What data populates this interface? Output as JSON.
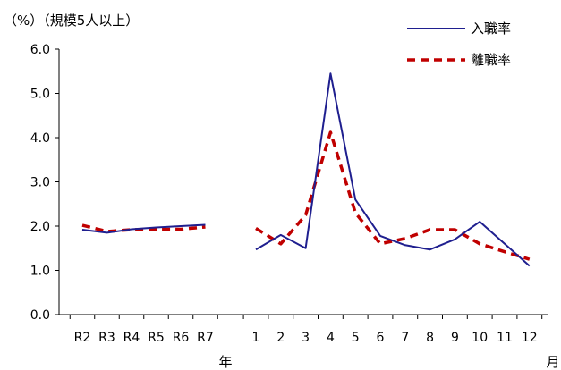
{
  "chart_data": {
    "type": "line",
    "title": "",
    "ylabel": "（%）（規模5人以上）",
    "xlabel_years": "年",
    "xlabel_months": "月",
    "ylim": [
      0,
      6
    ],
    "yticks": [
      "0.0",
      "1.0",
      "2.0",
      "3.0",
      "4.0",
      "5.0",
      "6.0"
    ],
    "year_categories": [
      "R2",
      "R3",
      "R4",
      "R5",
      "R6",
      "R7"
    ],
    "month_categories": [
      "1",
      "2",
      "3",
      "4",
      "5",
      "6",
      "7",
      "8",
      "9",
      "10",
      "11",
      "12"
    ],
    "legend_position": "top-right",
    "series": [
      {
        "name": "入職率",
        "color": "#1f1f8f",
        "style": "solid",
        "year_values": [
          1.92,
          1.85,
          1.93,
          1.97,
          2.0,
          2.03
        ],
        "month_values": [
          1.47,
          1.8,
          1.5,
          5.45,
          2.6,
          1.78,
          1.57,
          1.47,
          1.7,
          2.1,
          1.6,
          1.1
        ]
      },
      {
        "name": "離職率",
        "color": "#c00000",
        "style": "dashed",
        "year_values": [
          2.02,
          1.88,
          1.92,
          1.93,
          1.93,
          1.98
        ],
        "month_values": [
          1.95,
          1.6,
          2.25,
          4.12,
          2.3,
          1.6,
          1.72,
          1.92,
          1.92,
          1.6,
          1.42,
          1.25
        ]
      }
    ]
  }
}
